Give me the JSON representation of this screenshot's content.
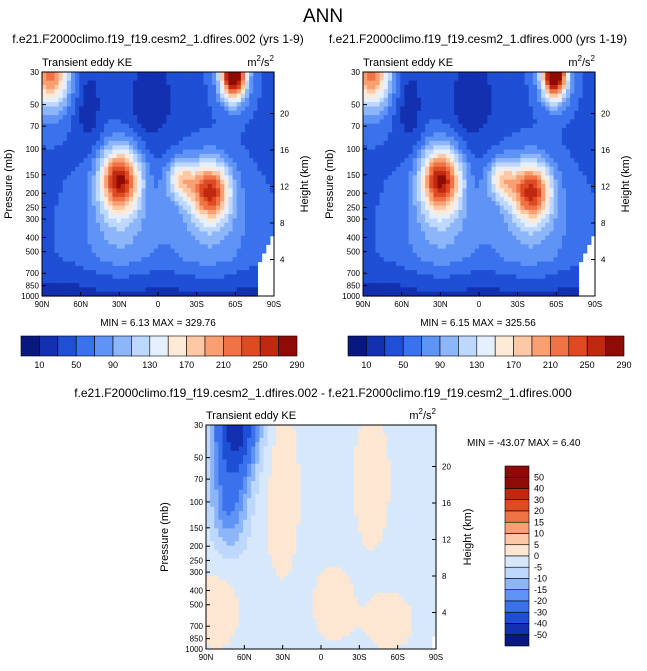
{
  "page_title": "ANN",
  "colors": {
    "seq": [
      "#08187e",
      "#1230b0",
      "#1e4fd4",
      "#3a72ee",
      "#5f93f5",
      "#8db6fa",
      "#bed8fd",
      "#e4efff",
      "#ffead7",
      "#fcc8a6",
      "#fa9f72",
      "#f07346",
      "#de4a22",
      "#c02810",
      "#8f0c06"
    ],
    "diff": [
      "#08187e",
      "#1230b0",
      "#1e4fd4",
      "#3a72ee",
      "#5f93f5",
      "#8db6fa",
      "#bed8fd",
      "#d8e8fb",
      "#fde6d2",
      "#fcc8a6",
      "#fa9f72",
      "#f07346",
      "#de4a22",
      "#c02810",
      "#8f0c06"
    ]
  },
  "chart_data": [
    {
      "type": "heatmap",
      "title": "f.e21.F2000climo.f19_f19.cesm2_1.dfires.002 (yrs 1-9)",
      "left_label": "Transient eddy KE",
      "units_base": "m",
      "units_exp1": "2",
      "units_mid": "/s",
      "units_exp2": "2",
      "ylabel": "Pressure (mb)",
      "ylabel_right": "Height (km)",
      "x_ticks": [
        "90N",
        "60N",
        "30N",
        "0",
        "30S",
        "60S",
        "90S"
      ],
      "x_values": [
        90,
        60,
        30,
        0,
        -30,
        -60,
        -90
      ],
      "y_ticks": [
        "30",
        "50",
        "70",
        "100",
        "150",
        "200",
        "250",
        "300",
        "400",
        "500",
        "700",
        "850",
        "1000"
      ],
      "y_values": [
        30,
        50,
        70,
        100,
        150,
        200,
        250,
        300,
        400,
        500,
        700,
        850,
        1000
      ],
      "height_ticks": [
        "20",
        "16",
        "12",
        "8",
        "4"
      ],
      "height_values": [
        20,
        16,
        12,
        8,
        4
      ],
      "stats": "MIN =  6.13   MAX = 329.76",
      "min": 6.13,
      "max": 329.76,
      "colorbar_levels": [
        10,
        30,
        50,
        70,
        90,
        110,
        130,
        150,
        170,
        190,
        210,
        230,
        250,
        270,
        290
      ],
      "colorbar_labels": [
        "10",
        "50",
        "90",
        "130",
        "170",
        "210",
        "250",
        "290"
      ],
      "features": [
        {
          "lat": 28,
          "p": 190,
          "value": 240,
          "desc": "NH subtropical jet maximum"
        },
        {
          "lat": -52,
          "p": 230,
          "value": 220,
          "desc": "SH jet maximum"
        },
        {
          "lat": -62,
          "p": 30,
          "value": 330,
          "desc": "SH stratospheric maximum"
        },
        {
          "lat": 82,
          "p": 30,
          "value": 210,
          "desc": "NH polar stratosphere"
        }
      ]
    },
    {
      "type": "heatmap",
      "title": "f.e21.F2000climo.f19_f19.cesm2_1.dfires.000 (yrs 1-19)",
      "left_label": "Transient eddy KE",
      "units_base": "m",
      "units_exp1": "2",
      "units_mid": "/s",
      "units_exp2": "2",
      "ylabel": "Pressure (mb)",
      "ylabel_right": "Height (km)",
      "x_ticks": [
        "90N",
        "60N",
        "30N",
        "0",
        "30S",
        "60S",
        "90S"
      ],
      "x_values": [
        90,
        60,
        30,
        0,
        -30,
        -60,
        -90
      ],
      "y_ticks": [
        "30",
        "50",
        "70",
        "100",
        "150",
        "200",
        "250",
        "300",
        "400",
        "500",
        "700",
        "850",
        "1000"
      ],
      "y_values": [
        30,
        50,
        70,
        100,
        150,
        200,
        250,
        300,
        400,
        500,
        700,
        850,
        1000
      ],
      "height_ticks": [
        "20",
        "16",
        "12",
        "8",
        "4"
      ],
      "height_values": [
        20,
        16,
        12,
        8,
        4
      ],
      "stats": "MIN =  6.15   MAX = 325.56",
      "min": 6.15,
      "max": 325.56,
      "colorbar_levels": [
        10,
        30,
        50,
        70,
        90,
        110,
        130,
        150,
        170,
        190,
        210,
        230,
        250,
        270,
        290
      ],
      "colorbar_labels": [
        "10",
        "50",
        "90",
        "130",
        "170",
        "210",
        "250",
        "290"
      ],
      "features": [
        {
          "lat": 28,
          "p": 190,
          "value": 240,
          "desc": "NH subtropical jet maximum"
        },
        {
          "lat": -52,
          "p": 230,
          "value": 220,
          "desc": "SH jet maximum"
        },
        {
          "lat": -62,
          "p": 30,
          "value": 326,
          "desc": "SH stratospheric maximum"
        },
        {
          "lat": 82,
          "p": 30,
          "value": 210,
          "desc": "NH polar stratosphere"
        }
      ]
    },
    {
      "type": "heatmap",
      "title": "f.e21.F2000climo.f19_f19.cesm2_1.dfires.002 - f.e21.F2000climo.f19_f19.cesm2_1.dfires.000",
      "left_label": "Transient eddy KE",
      "units_base": "m",
      "units_exp1": "2",
      "units_mid": "/s",
      "units_exp2": "2",
      "ylabel": "Pressure (mb)",
      "ylabel_right": "Height (km)",
      "x_ticks": [
        "90N",
        "60N",
        "30N",
        "0",
        "30S",
        "60S",
        "90S"
      ],
      "x_values": [
        90,
        60,
        30,
        0,
        -30,
        -60,
        -90
      ],
      "y_ticks": [
        "30",
        "50",
        "70",
        "100",
        "150",
        "200",
        "250",
        "300",
        "400",
        "500",
        "700",
        "850",
        "1000"
      ],
      "y_values": [
        30,
        50,
        70,
        100,
        150,
        200,
        250,
        300,
        400,
        500,
        700,
        850,
        1000
      ],
      "height_ticks": [
        "20",
        "16",
        "12",
        "8",
        "4"
      ],
      "height_values": [
        20,
        16,
        12,
        8,
        4
      ],
      "stats": "MIN = -43.07   MAX =   6.40",
      "min": -43.07,
      "max": 6.4,
      "colorbar_levels": [
        -50,
        -40,
        -30,
        -20,
        -15,
        -10,
        -5,
        0,
        5,
        10,
        15,
        20,
        30,
        40,
        50
      ],
      "colorbar_labels": [
        "-50",
        "-40",
        "-30",
        "-20",
        "-15",
        "-10",
        "-5",
        "0",
        "5",
        "10",
        "15",
        "20",
        "30",
        "40",
        "50"
      ],
      "features": [
        {
          "lat": 75,
          "p": 30,
          "value": -43,
          "desc": "NH polar stratosphere decrease"
        },
        {
          "lat": 15,
          "p": 40,
          "value": 4,
          "desc": "weak positive band"
        }
      ]
    }
  ]
}
